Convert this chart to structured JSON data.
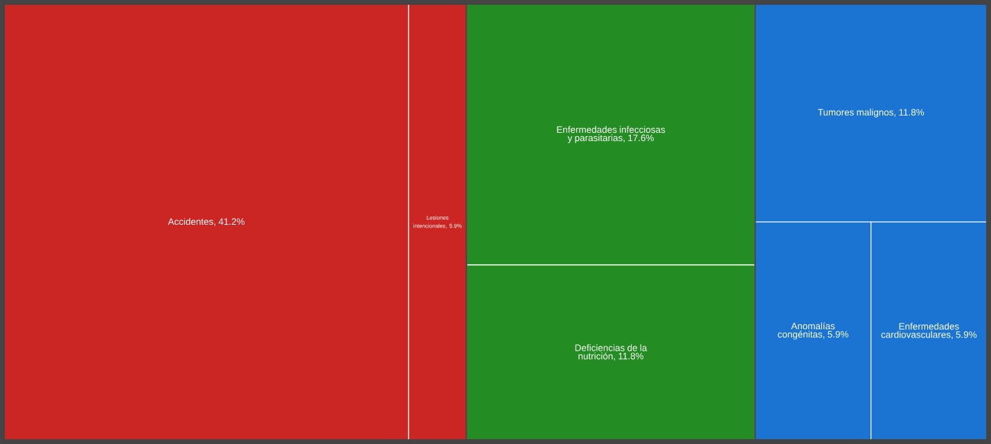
{
  "chart_data": {
    "type": "other",
    "categories": [
      "Accidentes",
      "Lesiones intencionales",
      "Enfermedades infecciosas y parasitarias",
      "Deficiencias de la nutrición",
      "Tumores malignos",
      "Anomalías congénitas",
      "Enfermedades cardiovasculares"
    ],
    "value_labels": [
      ", 41.2%",
      ", 5.9%",
      ", 17.6%",
      ", 11.8%",
      ", 11.8%",
      ", 5.9%",
      ", 5.9%"
    ],
    "values": [
      41.2,
      5.9,
      17.6,
      11.8,
      11.8,
      5.9,
      5.9
    ],
    "colors": [
      "#cc2624",
      "#cc2624",
      "#238c22",
      "#238c22",
      "#1b74d1",
      "#1b74d1",
      "#1b74d1"
    ]
  }
}
